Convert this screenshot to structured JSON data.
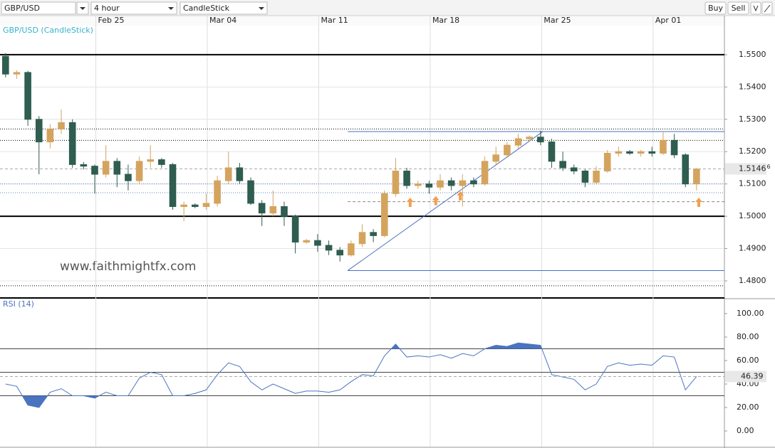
{
  "toolbar": {
    "symbol": "GBP/USD",
    "timeframe": "4 hour",
    "chart_type": "CandleStick",
    "buy": "Buy",
    "sell": "Sell"
  },
  "chart_data": [
    {
      "type": "candlestick",
      "title": "GBP/USD (CandleStick)",
      "watermark": "www.faithmightfx.com",
      "up_color": "#d4a45e",
      "down_color": "#2f5d50",
      "xlim": [
        -0.5,
        64.5
      ],
      "xticks": [
        {
          "value": 8.1,
          "label": "Feb 25"
        },
        {
          "value": 18.1,
          "label": "Mar 04"
        },
        {
          "value": 28.1,
          "label": "Mar 11"
        },
        {
          "value": 38.1,
          "label": "Mar 18"
        },
        {
          "value": 48.1,
          "label": "Mar 25"
        },
        {
          "value": 58.1,
          "label": "Apr 01"
        }
      ],
      "ylim": [
        1.4745,
        1.559
      ],
      "yticks": [
        {
          "value": 1.55,
          "label": "1.5500"
        },
        {
          "value": 1.54,
          "label": "1.5400"
        },
        {
          "value": 1.53,
          "label": "1.5300"
        },
        {
          "value": 1.52,
          "label": "1.5200"
        },
        {
          "value": 1.51,
          "label": "1.5100"
        },
        {
          "value": 1.5,
          "label": "1.5000"
        },
        {
          "value": 1.49,
          "label": "1.4900"
        },
        {
          "value": 1.48,
          "label": "1.4800"
        }
      ],
      "grid": true,
      "candles": [
        [
          1.5495,
          1.5505,
          1.543,
          1.544
        ],
        [
          1.544,
          1.5452,
          1.5425,
          1.5445
        ],
        [
          1.5445,
          1.545,
          1.528,
          1.53
        ],
        [
          1.53,
          1.531,
          1.513,
          1.523
        ],
        [
          1.523,
          1.5285,
          1.521,
          1.527
        ],
        [
          1.527,
          1.533,
          1.5255,
          1.529
        ],
        [
          1.529,
          1.53,
          1.515,
          1.516
        ],
        [
          1.516,
          1.5168,
          1.5145,
          1.5155
        ],
        [
          1.5155,
          1.516,
          1.507,
          1.513
        ],
        [
          1.513,
          1.522,
          1.512,
          1.517
        ],
        [
          1.517,
          1.518,
          1.509,
          1.513
        ],
        [
          1.513,
          1.516,
          1.508,
          1.511
        ],
        [
          1.511,
          1.5185,
          1.51,
          1.517
        ],
        [
          1.517,
          1.522,
          1.515,
          1.5175
        ],
        [
          1.5175,
          1.518,
          1.515,
          1.516
        ],
        [
          1.516,
          1.5165,
          1.502,
          1.503
        ],
        [
          1.503,
          1.5045,
          1.4985,
          1.5035
        ],
        [
          1.5035,
          1.504,
          1.5025,
          1.503
        ],
        [
          1.503,
          1.507,
          1.502,
          1.504
        ],
        [
          1.504,
          1.5125,
          1.503,
          1.511
        ],
        [
          1.511,
          1.52,
          1.51,
          1.515
        ],
        [
          1.515,
          1.5165,
          1.51,
          1.511
        ],
        [
          1.511,
          1.512,
          1.5035,
          1.504
        ],
        [
          1.504,
          1.505,
          1.497,
          1.501
        ],
        [
          1.501,
          1.508,
          1.5,
          1.503
        ],
        [
          1.503,
          1.5045,
          1.497,
          1.5
        ],
        [
          1.5,
          1.5005,
          1.4885,
          1.492
        ],
        [
          1.492,
          1.493,
          1.4915,
          1.4925
        ],
        [
          1.4925,
          1.4945,
          1.489,
          1.491
        ],
        [
          1.491,
          1.4925,
          1.488,
          1.4895
        ],
        [
          1.4895,
          1.4905,
          1.486,
          1.488
        ],
        [
          1.488,
          1.4925,
          1.4875,
          1.4915
        ],
        [
          1.4915,
          1.4975,
          1.4905,
          1.495
        ],
        [
          1.495,
          1.496,
          1.492,
          1.494
        ],
        [
          1.494,
          1.508,
          1.4935,
          1.507
        ],
        [
          1.507,
          1.518,
          1.506,
          1.514
        ],
        [
          1.514,
          1.515,
          1.5085,
          1.5095
        ],
        [
          1.5095,
          1.511,
          1.5085,
          1.51
        ],
        [
          1.51,
          1.511,
          1.507,
          1.509
        ],
        [
          1.509,
          1.513,
          1.508,
          1.511
        ],
        [
          1.511,
          1.512,
          1.508,
          1.5095
        ],
        [
          1.5095,
          1.513,
          1.503,
          1.511
        ],
        [
          1.511,
          1.512,
          1.509,
          1.51
        ],
        [
          1.51,
          1.5185,
          1.5095,
          1.517
        ],
        [
          1.517,
          1.5215,
          1.516,
          1.519
        ],
        [
          1.519,
          1.523,
          1.518,
          1.522
        ],
        [
          1.522,
          1.5255,
          1.521,
          1.524
        ],
        [
          1.524,
          1.525,
          1.523,
          1.5245
        ],
        [
          1.5245,
          1.5265,
          1.522,
          1.523
        ],
        [
          1.523,
          1.524,
          1.515,
          1.517
        ],
        [
          1.517,
          1.52,
          1.514,
          1.515
        ],
        [
          1.515,
          1.516,
          1.513,
          1.514
        ],
        [
          1.514,
          1.5145,
          1.509,
          1.5105
        ],
        [
          1.5105,
          1.5155,
          1.51,
          1.514
        ],
        [
          1.514,
          1.5205,
          1.5135,
          1.5195
        ],
        [
          1.5195,
          1.5215,
          1.5185,
          1.52
        ],
        [
          1.52,
          1.5205,
          1.519,
          1.5195
        ],
        [
          1.5195,
          1.5205,
          1.5185,
          1.52
        ],
        [
          1.52,
          1.5215,
          1.5185,
          1.5195
        ],
        [
          1.5195,
          1.526,
          1.519,
          1.5235
        ],
        [
          1.5235,
          1.5255,
          1.518,
          1.519
        ],
        [
          1.519,
          1.5195,
          1.509,
          1.51
        ],
        [
          1.51,
          1.515,
          1.508,
          1.5146
        ]
      ],
      "levels": [
        {
          "value": 1.55,
          "style": "solid-thick"
        },
        {
          "value": 1.5,
          "style": "solid-thick"
        },
        {
          "value": 1.527,
          "style": "dotted"
        },
        {
          "value": 1.5235,
          "style": "dotted"
        },
        {
          "value": 1.4785,
          "style": "dotted"
        },
        {
          "value": 1.51,
          "style": "dotted-blue"
        },
        {
          "value": 1.5073,
          "style": "dotted-blue"
        },
        {
          "value": 1.5045,
          "style": "dashed",
          "from": 30.7
        },
        {
          "value": 1.5262,
          "style": "solid-blue",
          "from": 30.7
        },
        {
          "value": 1.4832,
          "style": "solid-blue",
          "from": 30.7
        }
      ],
      "trendline": {
        "x1": 30.7,
        "y1": 1.4832,
        "x2": 48.2,
        "y2": 1.5262,
        "color": "#4a6fc0"
      },
      "markers": [
        {
          "x": 36.3,
          "y": 1.504
        },
        {
          "x": 38.6,
          "y": 1.5045
        },
        {
          "x": 40.8,
          "y": 1.506
        },
        {
          "x": 62.2,
          "y": 1.504
        }
      ],
      "marker_color": "#f0a050",
      "current_price": {
        "value": 1.51466,
        "label": "1.5146",
        "pipette": "6"
      }
    },
    {
      "type": "rsi",
      "title": "RSI (14)",
      "color": "#4a74c0",
      "xlim": [
        -0.5,
        64.5
      ],
      "ylim": [
        -13.3,
        111.5
      ],
      "yticks": [
        {
          "value": 100,
          "label": "100.00"
        },
        {
          "value": 80,
          "label": "80.00"
        },
        {
          "value": 60,
          "label": "60.00"
        },
        {
          "value": 40,
          "label": "40.00"
        },
        {
          "value": 20,
          "label": "20.00"
        },
        {
          "value": 0,
          "label": "0.00"
        }
      ],
      "levels": [
        70,
        50,
        30
      ],
      "values": [
        40,
        38,
        22,
        20,
        33,
        36,
        30,
        30,
        28,
        33,
        30,
        30,
        45,
        50,
        48,
        30,
        30,
        32,
        35,
        48,
        58,
        55,
        42,
        35,
        40,
        36,
        32,
        34,
        34,
        33,
        35,
        42,
        48,
        47,
        64,
        74,
        63,
        64,
        63,
        65,
        62,
        66,
        64,
        70,
        73,
        72,
        75,
        74,
        73,
        48,
        46,
        44,
        35,
        40,
        55,
        58,
        56,
        57,
        56,
        64,
        63,
        35,
        46.39
      ],
      "current": {
        "value": 46.39,
        "label": "46.39"
      }
    }
  ]
}
